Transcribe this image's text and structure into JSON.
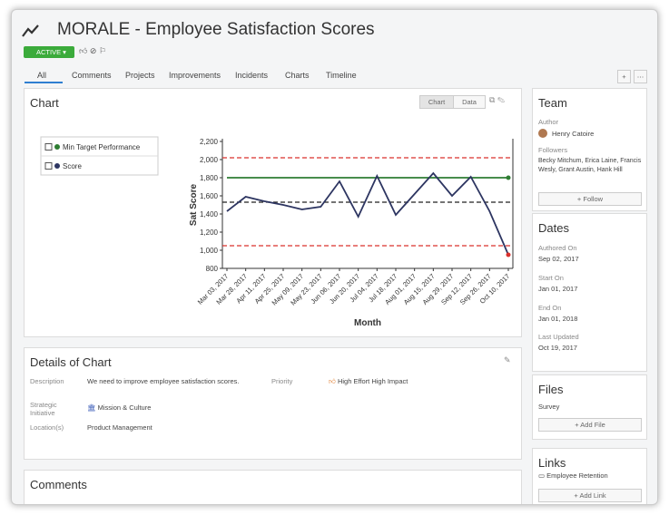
{
  "header": {
    "title": "MORALE - Employee Satisfaction Scores",
    "status": "ACTIVE"
  },
  "tabs": [
    "All",
    "Comments",
    "Projects",
    "Improvements",
    "Incidents",
    "Charts",
    "Timeline"
  ],
  "chart_panel": {
    "title": "Chart",
    "view_buttons": [
      "Chart",
      "Data"
    ]
  },
  "chart_data": {
    "type": "line",
    "x_label": "Month",
    "y_label": "Sat Score",
    "x": [
      "Mar 03, 2017",
      "Mar 28, 2017",
      "Apr 11, 2017",
      "Apr 25, 2017",
      "May 09, 2017",
      "May 23, 2017",
      "Jun 06, 2017",
      "Jun 20, 2017",
      "Jul 04, 2017",
      "Jul 18, 2017",
      "Aug 01, 2017",
      "Aug 15, 2017",
      "Aug 29, 2017",
      "Sep 12, 2017",
      "Sep 26, 2017",
      "Oct 10, 2017"
    ],
    "series": [
      {
        "name": "Min Target Performance",
        "color": "#2e7d32",
        "values": [
          1800,
          1800,
          1800,
          1800,
          1800,
          1800,
          1800,
          1800,
          1800,
          1800,
          1800,
          1800,
          1800,
          1800,
          1800,
          1800
        ]
      },
      {
        "name": "Score",
        "color": "#2d3561",
        "values": [
          1430,
          1590,
          1540,
          1500,
          1450,
          1480,
          1760,
          1370,
          1820,
          1390,
          1620,
          1850,
          1600,
          1810,
          1430,
          950
        ]
      }
    ],
    "reference_lines": [
      {
        "value": 2020,
        "color": "#d9302c"
      },
      {
        "value": 1530,
        "color": "#222222"
      },
      {
        "value": 1050,
        "color": "#d9302c"
      }
    ],
    "out_of_limit_color": "#d9302c",
    "ylim": [
      800,
      2200
    ],
    "yticks": [
      {
        "value": 800,
        "label": "800"
      },
      {
        "value": 1000,
        "label": "1,000"
      },
      {
        "value": 1200,
        "label": "1,200"
      },
      {
        "value": 1400,
        "label": "1,400"
      },
      {
        "value": 1600,
        "label": "1,600"
      },
      {
        "value": 1800,
        "label": "1,800"
      },
      {
        "value": 2000,
        "label": "2,000"
      },
      {
        "value": 2200,
        "label": "2,200"
      }
    ]
  },
  "details": {
    "title": "Details of Chart",
    "fields": [
      {
        "label": "Description",
        "value": "We need to improve employee satisfaction scores."
      },
      {
        "label": "Priority",
        "value": "High Effort High Impact"
      },
      {
        "label": "Strategic Initiative",
        "value": "Mission & Culture"
      },
      {
        "label": "Location(s)",
        "value": "Product Management"
      }
    ]
  },
  "comments": {
    "title": "Comments"
  },
  "team": {
    "title": "Team",
    "author_label": "Author",
    "author": "Henry Catoire",
    "followers_label": "Followers",
    "followers": "Becky Mitchum, Erica Laine, Francis Wesly, Grant Austin, Hank Hill",
    "button": "Follow"
  },
  "dates": {
    "title": "Dates",
    "items": [
      {
        "label": "Authored On",
        "value": "Sep 02, 2017"
      },
      {
        "label": "Start On",
        "value": "Jan 01, 2017"
      },
      {
        "label": "End On",
        "value": "Jan 01, 2018"
      },
      {
        "label": "Last Updated",
        "value": "Oct 19, 2017"
      }
    ]
  },
  "files": {
    "title": "Files",
    "items": [
      "Survey"
    ],
    "button": "Add File"
  },
  "links": {
    "title": "Links",
    "items": [
      "Employee Retention"
    ],
    "button": "Add Link"
  }
}
